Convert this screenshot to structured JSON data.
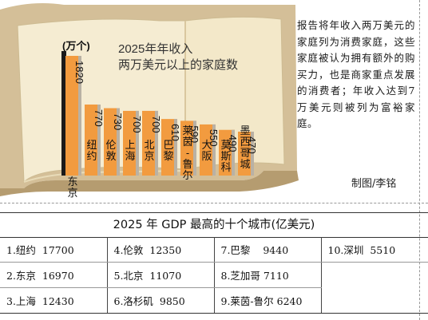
{
  "chart_data": {
    "type": "bar",
    "title": "2025年年收入\n两万美元以上的家庭数",
    "ylabel": "(万个)",
    "categories": [
      "东京",
      "纽约",
      "伦敦",
      "上海",
      "北京",
      "巴黎",
      "莱茵-鲁尔",
      "大阪",
      "莫斯科",
      "墨西哥城"
    ],
    "values": [
      1820,
      770,
      730,
      700,
      700,
      610,
      590,
      550,
      490,
      470
    ],
    "value_labels": [
      "1820",
      "770",
      "730",
      "700",
      "700",
      "610",
      "590",
      "550",
      "490",
      "470"
    ]
  },
  "note": "报告将年收入两万美元的家庭列为消费家庭，这些家庭被认为拥有额外的购买力，也是商家重点发展的消费者；年收入达到7万美元则被列为富裕家庭。",
  "credit": "制图/李铭",
  "table": {
    "title": "2025 年 GDP 最高的十个城市(亿美元)",
    "columns": [
      [
        {
          "label": "1.纽约",
          "value": "17700"
        },
        {
          "label": "2.东京",
          "value": "16970"
        },
        {
          "label": "3.上海",
          "value": "12430"
        }
      ],
      [
        {
          "label": "4.伦敦",
          "value": "12350"
        },
        {
          "label": "5.北京",
          "value": "11070"
        },
        {
          "label": "6.洛杉矶",
          "value": "9850"
        }
      ],
      [
        {
          "label": "7.巴黎",
          "value": "9440"
        },
        {
          "label": "8.芝加哥",
          "value": "7110"
        },
        {
          "label": "9.莱茵-鲁尔",
          "value": "6240"
        }
      ],
      [
        {
          "label": "10.深圳",
          "value": "5510"
        }
      ]
    ]
  },
  "colors": {
    "book_cover": "#d4bf98",
    "book_cover_dark": "#b59c70",
    "page": "#f5ecd2",
    "bar_orange": "#f29b3f",
    "bar_gray": "#b9b1a4",
    "bar_black": "#1a1a1a"
  }
}
